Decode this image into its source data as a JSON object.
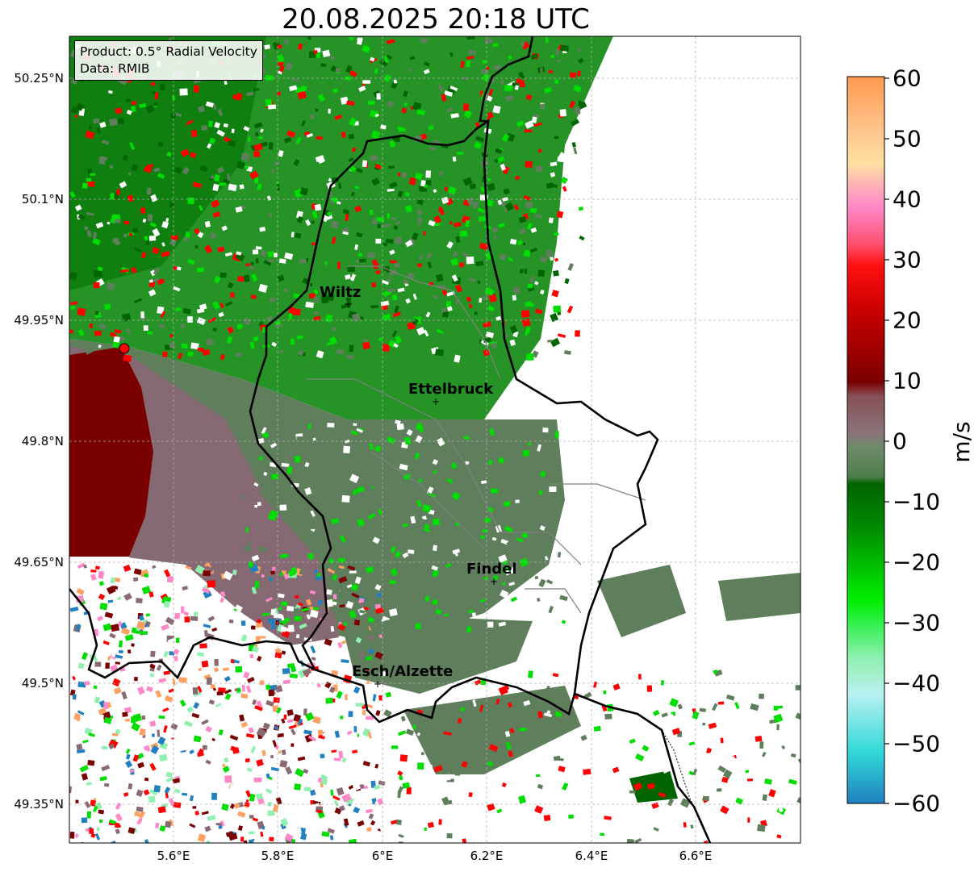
{
  "title": "20.08.2025 20:18 UTC",
  "info_box": {
    "product": "Product: 0.5° Radial Velocity",
    "data": "Data: RMIB"
  },
  "map": {
    "lat_ticks": [
      "50.25°N",
      "50.1°N",
      "49.95°N",
      "49.8°N",
      "49.65°N",
      "49.5°N",
      "49.35°N"
    ],
    "lon_ticks": [
      "5.6°E",
      "5.8°E",
      "6°E",
      "6.2°E",
      "6.4°E",
      "6.6°E"
    ],
    "gridlines": true,
    "cities": [
      {
        "name": "Wiltz"
      },
      {
        "name": "Ettelbruck"
      },
      {
        "name": "Findel"
      },
      {
        "name": "Esch/Alzette"
      }
    ],
    "radar_marker_color": "#ff0000"
  },
  "colorbar": {
    "label": "m/s",
    "min": -60,
    "max": 60,
    "ticks": [
      "60",
      "50",
      "40",
      "30",
      "20",
      "10",
      "0",
      "−10",
      "−20",
      "−30",
      "−40",
      "−50",
      "−60"
    ],
    "colors": {
      "outbound_strong": "#ffa060",
      "outbound_pink": "#ff88c8",
      "outbound_red": "#ff0000",
      "outbound_dark": "#7a0000",
      "near_zero_pos": "#8a6a72",
      "near_zero_neg": "#5e7e5c",
      "inbound_dark": "#006400",
      "inbound_green": "#00dd00",
      "inbound_light": "#90f0b0",
      "inbound_cyan": "#30d8d8",
      "inbound_blue": "#2080c0"
    }
  }
}
